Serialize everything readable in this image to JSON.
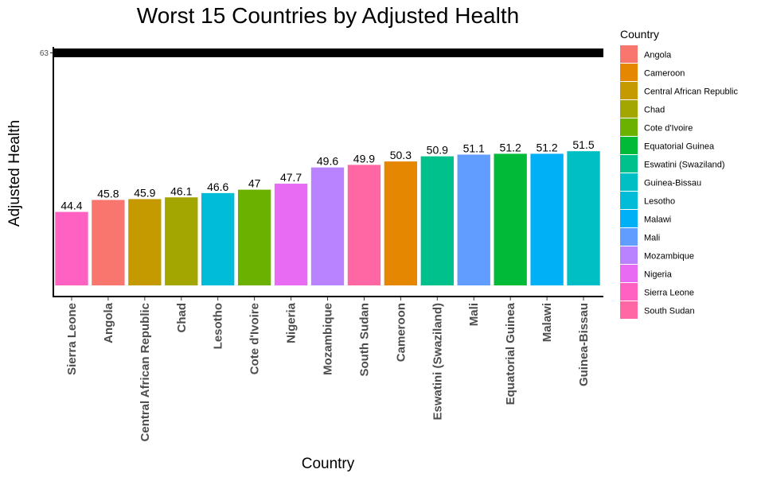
{
  "chart_data": {
    "type": "bar",
    "title": "Worst 15 Countries by Adjusted Health",
    "xlabel": "Country",
    "ylabel": "Adjusted Health",
    "ylim": [
      34.5,
      63.7
    ],
    "yticks": [
      63
    ],
    "hline": 63,
    "grid": false,
    "categories": [
      "Sierra Leone",
      "Angola",
      "Central African Republic",
      "Chad",
      "Lesotho",
      "Cote d'Ivoire",
      "Nigeria",
      "Mozambique",
      "South Sudan",
      "Cameroon",
      "Eswatini (Swaziland)",
      "Mali",
      "Equatorial Guinea",
      "Malawi",
      "Guinea-Bissau"
    ],
    "values": [
      44.4,
      45.8,
      45.9,
      46.1,
      46.6,
      47,
      47.7,
      49.6,
      49.9,
      50.3,
      50.9,
      51.1,
      51.2,
      51.2,
      51.5
    ],
    "value_labels": [
      "44.4",
      "45.8",
      "45.9",
      "46.1",
      "46.6",
      "47",
      "47.7",
      "49.6",
      "49.9",
      "50.3",
      "50.9",
      "51.1",
      "51.2",
      "51.2",
      "51.5"
    ],
    "colors": [
      "#FF61C3",
      "#F8766D",
      "#C49A00",
      "#A3A500",
      "#00BCD8",
      "#6BB100",
      "#E76BF3",
      "#B983FF",
      "#FF67A4",
      "#E58700",
      "#00C08B",
      "#619CFF",
      "#00BA38",
      "#00B0F6",
      "#00BFC4"
    ],
    "legend": {
      "title": "Country",
      "position": "right",
      "items": [
        {
          "label": "Angola",
          "color": "#F8766D"
        },
        {
          "label": "Cameroon",
          "color": "#E58700"
        },
        {
          "label": "Central African Republic",
          "color": "#C49A00"
        },
        {
          "label": "Chad",
          "color": "#A3A500"
        },
        {
          "label": "Cote d'Ivoire",
          "color": "#6BB100"
        },
        {
          "label": "Equatorial Guinea",
          "color": "#00BA38"
        },
        {
          "label": "Eswatini (Swaziland)",
          "color": "#00C08B"
        },
        {
          "label": "Guinea-Bissau",
          "color": "#00BFC4"
        },
        {
          "label": "Lesotho",
          "color": "#00BCD8"
        },
        {
          "label": "Malawi",
          "color": "#00B0F6"
        },
        {
          "label": "Mali",
          "color": "#619CFF"
        },
        {
          "label": "Mozambique",
          "color": "#B983FF"
        },
        {
          "label": "Nigeria",
          "color": "#E76BF3"
        },
        {
          "label": "Sierra Leone",
          "color": "#FF61C3"
        },
        {
          "label": "South Sudan",
          "color": "#FF67A4"
        }
      ]
    }
  }
}
